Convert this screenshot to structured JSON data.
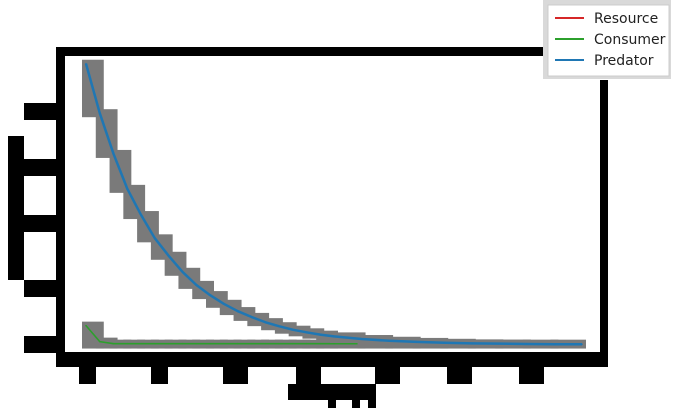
{
  "chart_data": {
    "type": "line",
    "title": "",
    "xlabel": "",
    "ylabel": "",
    "xlim": [
      0,
      72
    ],
    "ylim": [
      0,
      100
    ],
    "grid": false,
    "legend_position": "top-right",
    "x": [
      0,
      2,
      4,
      6,
      8,
      10,
      12,
      14,
      16,
      18,
      20,
      22,
      24,
      26,
      28,
      30,
      32,
      34,
      36,
      40,
      44,
      48,
      52,
      56,
      60,
      64,
      68,
      72
    ],
    "series": [
      {
        "name": "Resource",
        "color": "#d62728",
        "values": [
          0.5,
          0.5,
          0.5,
          0.5,
          0.5,
          0.5,
          0.5,
          0.5,
          0.5,
          0.5,
          0.5,
          0.5,
          0.5,
          0.5,
          0.5,
          0.5,
          0.5,
          0.5,
          0.5,
          0.5,
          0.5,
          0.5,
          0.5,
          0.5,
          0.5,
          0.5,
          0.5,
          0.5
        ]
      },
      {
        "name": "Consumer",
        "color": "#2ca02c",
        "values": [
          7,
          1.5,
          0.8,
          0.8,
          0.8,
          0.8,
          0.8,
          0.8,
          0.8,
          0.8,
          0.8,
          0.8,
          0.8,
          0.8,
          0.8,
          0.8,
          0.8,
          0.8,
          0.8,
          0.8,
          0.8,
          0.8,
          0.8,
          0.8,
          0.8,
          0.8,
          0.8,
          0.8
        ]
      },
      {
        "name": "Predator",
        "color": "#1f77b4",
        "values": [
          97,
          80,
          66,
          54,
          45,
          37,
          31,
          25.5,
          21,
          17.5,
          14.5,
          12,
          10,
          8.2,
          6.8,
          5.6,
          4.7,
          3.9,
          3.3,
          2.4,
          1.8,
          1.4,
          1.1,
          0.9,
          0.8,
          0.7,
          0.6,
          0.6
        ]
      }
    ]
  }
}
